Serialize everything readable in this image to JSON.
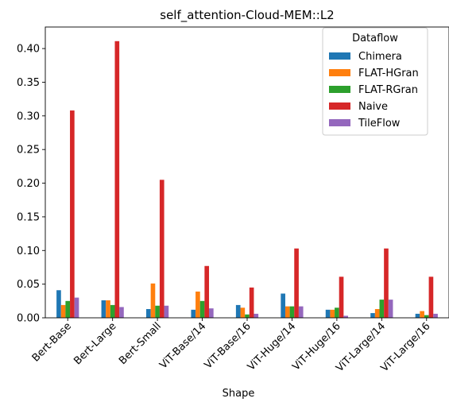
{
  "chart_data": {
    "type": "bar",
    "title": "self_attention-Cloud-MEM::L2",
    "xlabel": "Shape",
    "ylabel": "",
    "ylim": [
      0,
      0.432
    ],
    "yticks": [
      "0.00",
      "0.05",
      "0.10",
      "0.15",
      "0.20",
      "0.25",
      "0.30",
      "0.35",
      "0.40"
    ],
    "categories": [
      "Bert-Base",
      "Bert-Large",
      "Bert-Small",
      "ViT-Base/14",
      "ViT-Base/16",
      "ViT-Huge/14",
      "ViT-Huge/16",
      "ViT-Large/14",
      "ViT-Large/16"
    ],
    "legend_title": "Dataflow",
    "legend_position": "top-right",
    "grid": false,
    "series": [
      {
        "name": "Chimera",
        "color": "#1f77b4",
        "values": [
          0.041,
          0.026,
          0.013,
          0.012,
          0.019,
          0.036,
          0.012,
          0.007,
          0.006
        ]
      },
      {
        "name": "FLAT-HGran",
        "color": "#ff7f0e",
        "values": [
          0.019,
          0.026,
          0.051,
          0.039,
          0.015,
          0.017,
          0.012,
          0.013,
          0.01
        ]
      },
      {
        "name": "FLAT-RGran",
        "color": "#2ca02c",
        "values": [
          0.025,
          0.019,
          0.018,
          0.025,
          0.005,
          0.017,
          0.015,
          0.027,
          0.004
        ]
      },
      {
        "name": "Naive",
        "color": "#d62728",
        "values": [
          0.308,
          0.411,
          0.205,
          0.077,
          0.045,
          0.103,
          0.061,
          0.103,
          0.061
        ]
      },
      {
        "name": "TileFlow",
        "color": "#9467bd",
        "values": [
          0.03,
          0.016,
          0.018,
          0.014,
          0.006,
          0.017,
          0.003,
          0.027,
          0.006
        ]
      }
    ]
  }
}
